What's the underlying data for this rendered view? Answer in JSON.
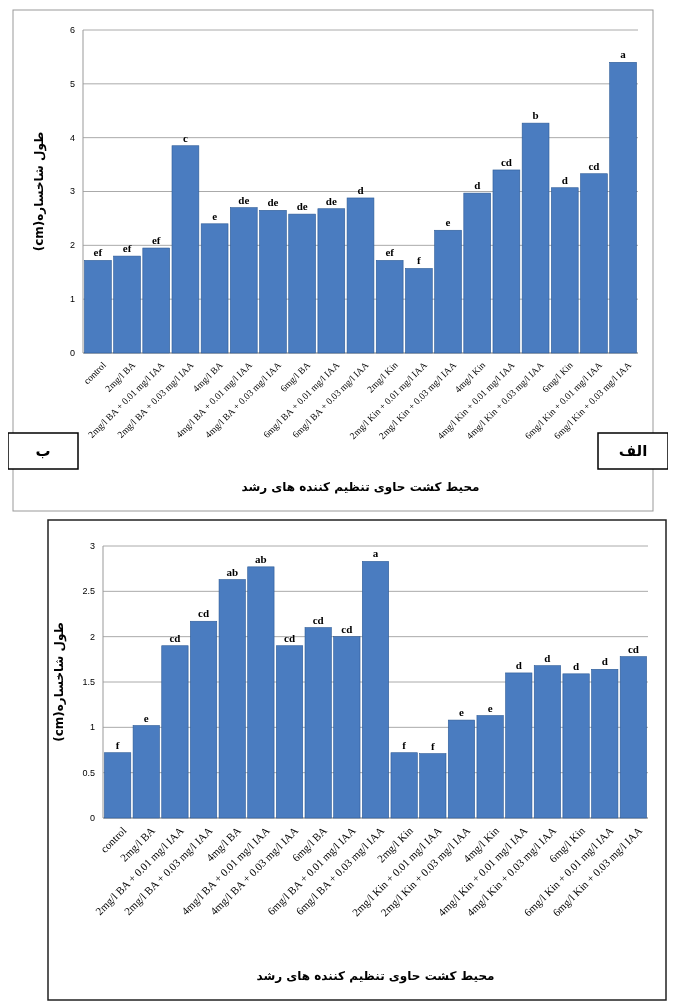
{
  "chart_data": [
    {
      "type": "bar",
      "xlabel": "محیط کشت حاوی تنظیم کننده های رشد",
      "ylabel": "طول شاخساره(cm)",
      "categories": [
        "control",
        "2mg/l BA",
        "2mg/l BA + 0.01 mg/l IAA",
        "2mg/l BA + 0.03 mg/l IAA",
        "4mg/l BA",
        "4mg/l BA + 0.01 mg/l IAA",
        "4mg/l BA + 0.03 mg/l IAA",
        "6mg/l BA",
        "6mg/l BA + 0.01 mg/l IAA",
        "6mg/l BA + 0.03 mg/l IAA",
        "2mg/l Kin",
        "2mg/l Kin + 0.01 mg/l IAA",
        "2mg/l Kin + 0.03 mg/l IAA",
        "4mg/l Kin",
        "4mg/l Kin + 0.01 mg/l IAA",
        "4mg/l Kin + 0.03 mg/l IAA",
        "6mg/l Kin",
        "6mg/l Kin + 0.01 mg/l IAA",
        "6mg/l Kin + 0.03 mg/l IAA"
      ],
      "values": [
        1.72,
        1.8,
        1.95,
        3.85,
        2.4,
        2.7,
        2.65,
        2.58,
        2.68,
        2.88,
        1.72,
        1.57,
        2.28,
        2.97,
        3.4,
        4.27,
        3.07,
        3.33,
        5.4
      ],
      "value_labels": [
        "ef",
        "ef",
        "ef",
        "c",
        "e",
        "de",
        "de",
        "de",
        "de",
        "d",
        "ef",
        "f",
        "e",
        "d",
        "cd",
        "b",
        "d",
        "cd",
        "a"
      ],
      "color": "#4a7cc0",
      "ylim": [
        0,
        6
      ],
      "yticks": [
        0,
        1,
        2,
        3,
        4,
        5,
        6
      ],
      "grid": "y",
      "annotations": [
        "ب",
        "الف"
      ]
    },
    {
      "type": "bar",
      "xlabel": "محیط کشت حاوی تنظیم کننده های رشد",
      "ylabel": "طول شاخساره(cm)",
      "categories": [
        "control",
        "2mg/l BA",
        "2mg/l BA + 0.01 mg/l IAA",
        "2mg/l BA + 0.03 mg/l IAA",
        "4mg/l BA",
        "4mg/l BA + 0.01 mg/l IAA",
        "4mg/l BA + 0.03 mg/l IAA",
        "6mg/l BA",
        "6mg/l BA + 0.01 mg/l IAA",
        "6mg/l BA + 0.03 mg/l IAA",
        "2mg/l Kin",
        "2mg/l Kin + 0.01 mg/l IAA",
        "2mg/l Kin + 0.03 mg/l IAA",
        "4mg/l Kin",
        "4mg/l Kin + 0.01 mg/l IAA",
        "4mg/l Kin + 0.03 mg/l IAA",
        "6mg/l Kin",
        "6mg/l Kin + 0.01 mg/l IAA",
        "6mg/l Kin + 0.03 mg/l IAA"
      ],
      "values": [
        0.72,
        1.02,
        1.9,
        2.17,
        2.63,
        2.77,
        1.9,
        2.1,
        2.0,
        2.83,
        0.72,
        0.71,
        1.08,
        1.13,
        1.6,
        1.68,
        1.59,
        1.64,
        1.78
      ],
      "value_labels": [
        "f",
        "e",
        "cd",
        "cd",
        "ab",
        "ab",
        "cd",
        "cd",
        "cd",
        "a",
        "f",
        "f",
        "e",
        "e",
        "d",
        "d",
        "d",
        "d",
        "cd"
      ],
      "color": "#4a7cc0",
      "ylim": [
        0,
        3
      ],
      "yticks": [
        0,
        0.5,
        1,
        1.5,
        2,
        2.5,
        3
      ],
      "grid": "y"
    }
  ]
}
